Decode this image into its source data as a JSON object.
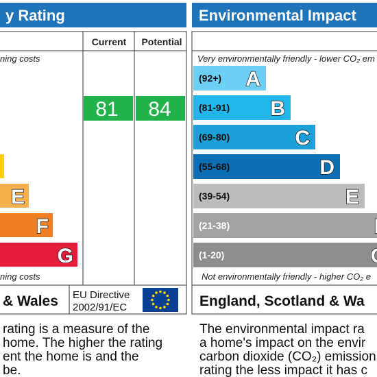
{
  "left": {
    "title": "y Rating",
    "columns": [
      "Current",
      "Potential"
    ],
    "top_note": "ning costs",
    "bands": [
      {
        "letter": "E"
      },
      {
        "letter": "F"
      },
      {
        "letter": "G"
      }
    ],
    "current": "81",
    "potential": "84",
    "bottom_note": "ning costs",
    "footer": "& Wales",
    "directive": [
      "EU Directive",
      "2002/91/EC"
    ],
    "description": [
      "rating is a measure of the",
      "home. The higher the rating",
      "ent the home is and the",
      "be."
    ]
  },
  "right": {
    "title": "Environmental Impact",
    "top_note": "Very environmentally friendly - lower CO₂ em",
    "bands": [
      {
        "range": "(92+)",
        "letter": "A"
      },
      {
        "range": "(81-91)",
        "letter": "B"
      },
      {
        "range": "(69-80)",
        "letter": "C"
      },
      {
        "range": "(55-68)",
        "letter": "D"
      },
      {
        "range": "(39-54)",
        "letter": "E"
      },
      {
        "range": "(21-38)",
        "letter": "F"
      },
      {
        "range": "(1-20)",
        "letter": "G"
      }
    ],
    "bottom_note": "Not environmentally friendly - higher CO₂ e",
    "footer": "England, Scotland & Wa",
    "description": [
      "The environmental impact ra",
      "a home's impact on the envir",
      "carbon dioxide (CO₂) emission",
      "rating the less impact it has c"
    ]
  }
}
